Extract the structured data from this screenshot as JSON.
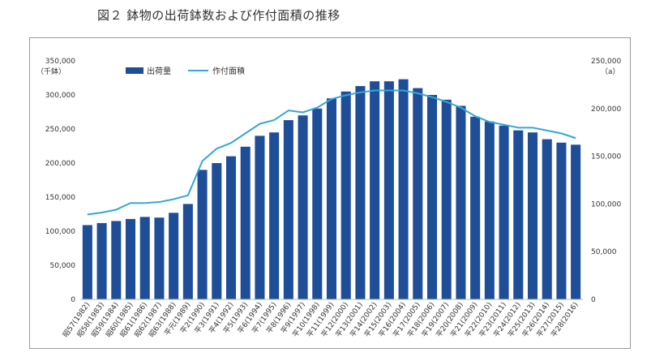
{
  "page": {
    "title": "図２ 鉢物の出荷鉢数および作付面積の推移"
  },
  "chart_data": {
    "type": "bar",
    "left_unit": "（千鉢）",
    "right_unit": "（a）",
    "grid": false,
    "legend_position": "top-left",
    "colors": {
      "bar": "#1f4e99",
      "line": "#35a7d6"
    },
    "left_axis": {
      "ylim": [
        0,
        350000
      ],
      "ticks": [
        0,
        50000,
        100000,
        150000,
        200000,
        250000,
        300000,
        350000
      ],
      "tick_labels": [
        "0",
        "50,000",
        "100,000",
        "150,000",
        "200,000",
        "250,000",
        "300,000",
        "350,000"
      ]
    },
    "right_axis": {
      "ylim": [
        0,
        250000
      ],
      "ticks": [
        0,
        50000,
        100000,
        150000,
        200000,
        250000
      ],
      "tick_labels": [
        "0",
        "50,000",
        "100,000",
        "150,000",
        "200,000",
        "250,000"
      ]
    },
    "categories": [
      "昭57(1982)",
      "昭58(1983)",
      "昭59(1984)",
      "昭60(1985)",
      "昭61(1986)",
      "昭62(1987)",
      "昭63(1988)",
      "平元(1989)",
      "平2(1990)",
      "平3(1991)",
      "平4(1992)",
      "平5(1993)",
      "平6(1994)",
      "平7(1995)",
      "平8(1996)",
      "平9(1997)",
      "平10(1998)",
      "平11(1999)",
      "平12(2000)",
      "平13(2001)",
      "平14(2002)",
      "平15(2003)",
      "平16(2004)",
      "平17(2005)",
      "平18(2006)",
      "平19(2007)",
      "平20(2008)",
      "平21(2009)",
      "平22(2010)",
      "平23(2011)",
      "平24(2012)",
      "平25(2013)",
      "平26(2014)",
      "平27(2015)",
      "平28(2016)"
    ],
    "series": [
      {
        "name": "出荷量",
        "type": "bar",
        "axis": "left",
        "values": [
          109000,
          112000,
          115000,
          118000,
          121000,
          120000,
          127000,
          140000,
          190000,
          200000,
          210000,
          224000,
          240000,
          245000,
          263000,
          270000,
          280000,
          295000,
          305000,
          313000,
          320000,
          320000,
          323000,
          310000,
          300000,
          293000,
          284000,
          268000,
          261000,
          255000,
          248000,
          245000,
          235000,
          230000,
          227000
        ]
      },
      {
        "name": "作付面積",
        "type": "line",
        "axis": "right",
        "values": [
          89000,
          91000,
          94000,
          101000,
          101000,
          102000,
          105000,
          109000,
          145000,
          158000,
          164000,
          174000,
          184000,
          188000,
          198000,
          196000,
          201000,
          210000,
          214000,
          217000,
          219000,
          219000,
          219000,
          216000,
          212000,
          207000,
          201000,
          192000,
          186000,
          183000,
          180000,
          180000,
          177000,
          174000,
          169000
        ]
      }
    ]
  }
}
